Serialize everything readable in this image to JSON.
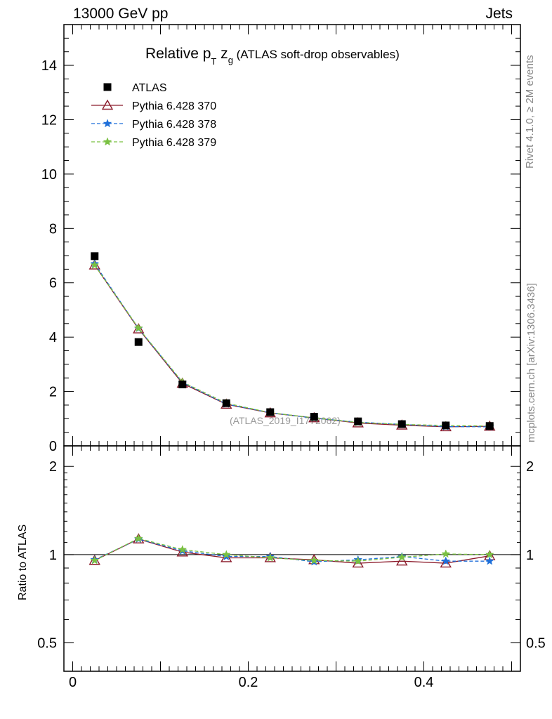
{
  "header": {
    "energy_label": "13000 GeV pp",
    "process_label": "Jets"
  },
  "side_labels": {
    "rivet": "Rivet 4.1.0, ≥ 2M events",
    "mcplots": "mcplots.cern.ch [arXiv:1306.3436]"
  },
  "chart_data": [
    {
      "type": "scatter",
      "panel": "main",
      "title_parts": {
        "pre": "Relative p",
        "sub1": "T",
        "mid": " z",
        "sub2": "g",
        "post": " (ATLAS soft-drop observables)"
      },
      "watermark": "(ATLAS_2019_I1772062)",
      "x": [
        0.025,
        0.075,
        0.125,
        0.175,
        0.225,
        0.275,
        0.325,
        0.375,
        0.425,
        0.475
      ],
      "xlim": [
        -0.01,
        0.51
      ],
      "ylim": [
        0,
        15.5
      ],
      "y_ticks": [
        0,
        2,
        4,
        6,
        8,
        10,
        12,
        14
      ],
      "y_tick_labels": [
        "0",
        "2",
        "4",
        "6",
        "8",
        "10",
        "12",
        "14"
      ],
      "legend_position": "top-left",
      "series": [
        {
          "name": "ATLAS",
          "marker": "square",
          "color": "#000000",
          "values": [
            6.98,
            3.82,
            2.26,
            1.57,
            1.24,
            1.07,
            0.9,
            0.8,
            0.75,
            0.73
          ]
        },
        {
          "name": "Pythia 6.428 370",
          "marker": "triangle",
          "color": "#8b1a2a",
          "line": "solid",
          "values": [
            6.65,
            4.3,
            2.3,
            1.53,
            1.21,
            1.03,
            0.84,
            0.76,
            0.7,
            0.72
          ]
        },
        {
          "name": "Pythia 6.428 378",
          "marker": "star",
          "color": "#1e6fd9",
          "line": "dashed",
          "values": [
            6.7,
            4.32,
            2.33,
            1.54,
            1.22,
            1.02,
            0.87,
            0.79,
            0.71,
            0.7
          ]
        },
        {
          "name": "Pythia 6.428 379",
          "marker": "star",
          "color": "#7ac142",
          "line": "dashed",
          "values": [
            6.65,
            4.33,
            2.35,
            1.57,
            1.22,
            1.03,
            0.86,
            0.79,
            0.75,
            0.73
          ]
        }
      ]
    },
    {
      "type": "scatter",
      "panel": "ratio",
      "ylabel": "Ratio to ATLAS",
      "x": [
        0.025,
        0.075,
        0.125,
        0.175,
        0.225,
        0.275,
        0.325,
        0.375,
        0.425,
        0.475
      ],
      "xlim": [
        -0.01,
        0.51
      ],
      "ylim": [
        0.4,
        2.35
      ],
      "y_scale": "log",
      "y_ticks": [
        0.5,
        1,
        2
      ],
      "y_tick_labels": [
        "0.5",
        "1",
        "2"
      ],
      "x_ticks": [
        0,
        0.2,
        0.4
      ],
      "x_tick_labels": [
        "0",
        "0.2",
        "0.4"
      ],
      "reference_line": 1,
      "series": [
        {
          "name": "Pythia 6.428 370",
          "marker": "triangle",
          "color": "#8b1a2a",
          "line": "solid",
          "values": [
            0.955,
            1.13,
            1.02,
            0.975,
            0.975,
            0.96,
            0.935,
            0.95,
            0.935,
            0.99
          ]
        },
        {
          "name": "Pythia 6.428 378",
          "marker": "star",
          "color": "#1e6fd9",
          "line": "dashed",
          "values": [
            0.96,
            1.13,
            1.03,
            0.985,
            0.985,
            0.945,
            0.96,
            0.985,
            0.95,
            0.95
          ]
        },
        {
          "name": "Pythia 6.428 379",
          "marker": "star",
          "color": "#7ac142",
          "line": "dashed",
          "values": [
            0.955,
            1.135,
            1.04,
            1.0,
            0.975,
            0.955,
            0.95,
            0.98,
            1.005,
            1.0
          ]
        }
      ]
    }
  ]
}
